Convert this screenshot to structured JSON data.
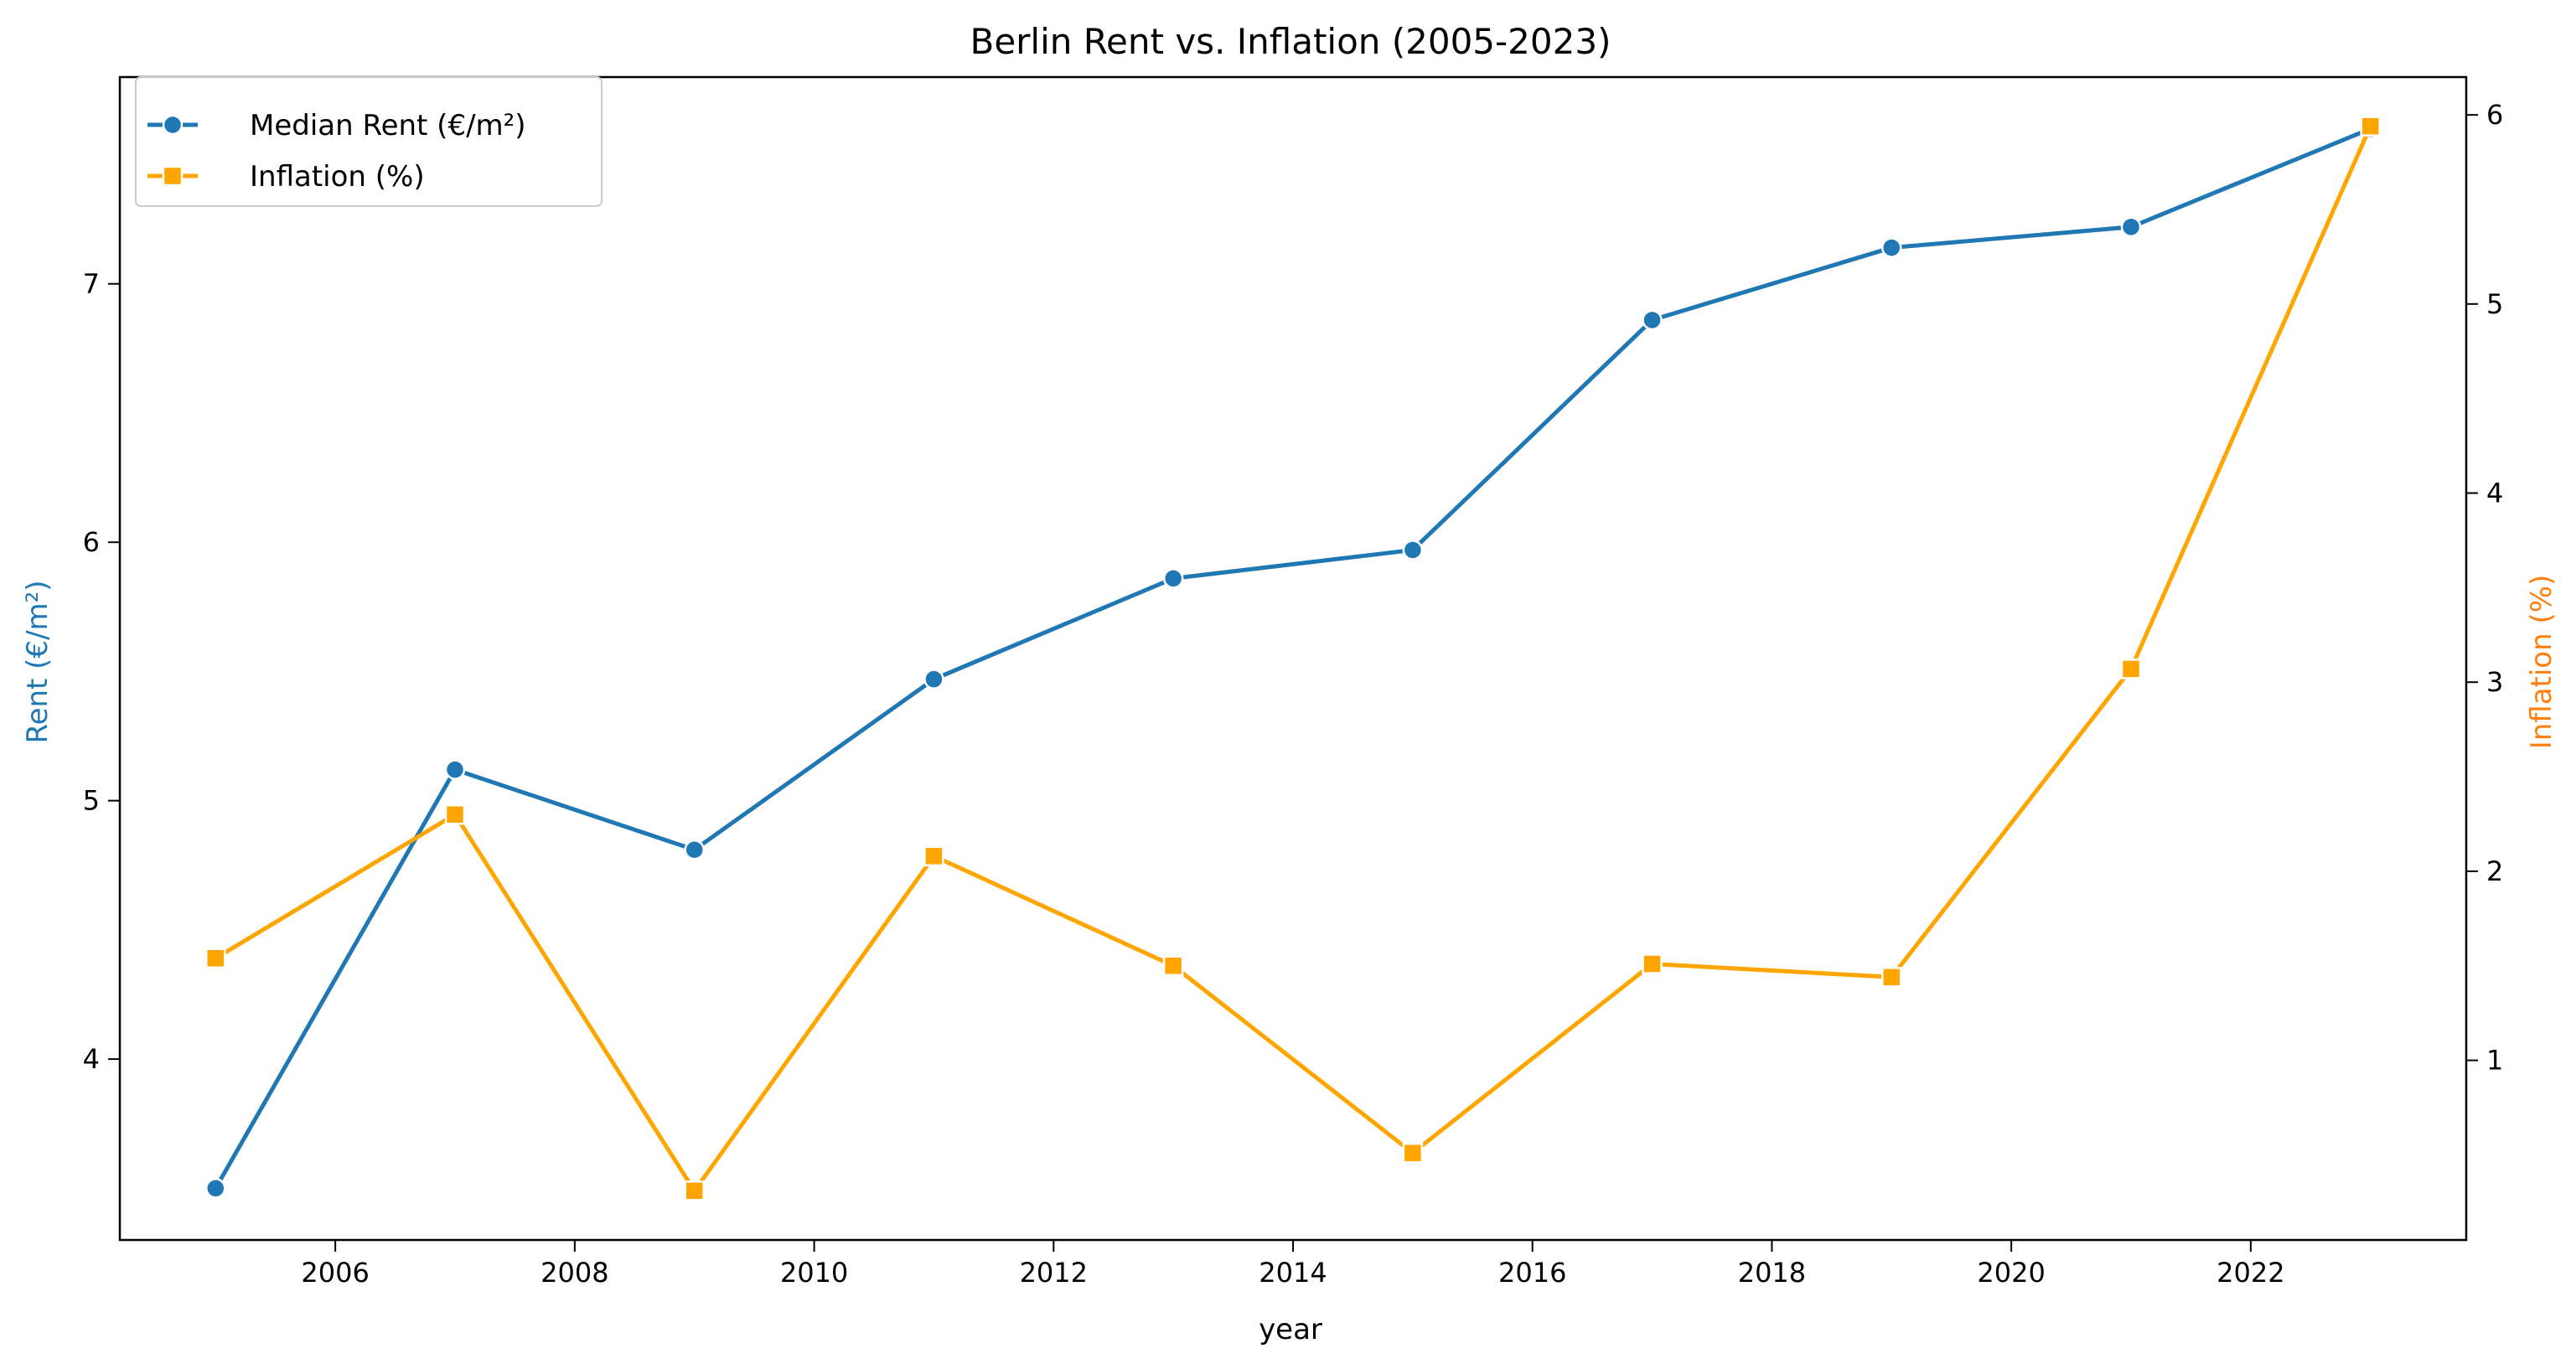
{
  "chart_data": {
    "type": "line",
    "title": "Berlin Rent vs. Inflation (2005-2023)",
    "xlabel": "year",
    "ylabel_left": "Rent (€/m²)",
    "ylabel_right": "Inflation (%)",
    "x": [
      2005,
      2007,
      2009,
      2011,
      2013,
      2015,
      2017,
      2019,
      2021,
      2023
    ],
    "xlim": [
      2004.2,
      2023.8
    ],
    "x_ticks": [
      "2006",
      "2008",
      "2010",
      "2012",
      "2014",
      "2016",
      "2018",
      "2020",
      "2022"
    ],
    "ylim_left": [
      3.3,
      7.8
    ],
    "y_ticks_left": [
      "4",
      "5",
      "6",
      "7"
    ],
    "ylim_right": [
      0.05,
      6.2
    ],
    "y_ticks_right": [
      "1",
      "2",
      "3",
      "4",
      "5",
      "6"
    ],
    "legend_position": "top-left",
    "grid": false,
    "series": [
      {
        "name": "Median Rent (€/m²)",
        "axis": "left",
        "color": "#1f77b4",
        "marker": "circle",
        "values": [
          3.5,
          5.12,
          4.81,
          5.47,
          5.86,
          5.97,
          6.86,
          7.14,
          7.22,
          7.6
        ]
      },
      {
        "name": "Inflation (%)",
        "axis": "right",
        "color": "#ffa500",
        "marker": "square",
        "values": [
          1.54,
          2.3,
          0.31,
          2.08,
          1.5,
          0.51,
          1.51,
          1.44,
          3.07,
          5.94
        ]
      }
    ],
    "axis_colors": {
      "left": "#1f77b4",
      "right": "#ff7f0e"
    }
  }
}
